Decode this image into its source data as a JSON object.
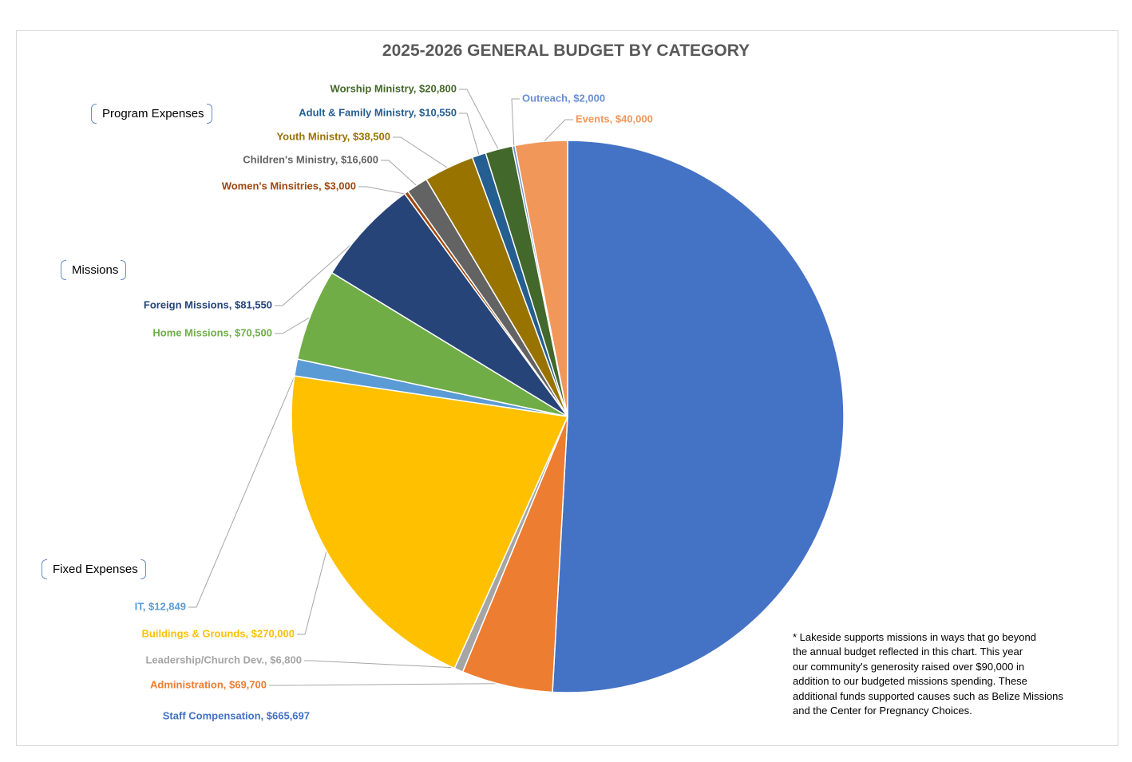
{
  "chart_data": {
    "type": "pie",
    "title": "2025-2026 GENERAL BUDGET BY CATEGORY",
    "slices": [
      {
        "label": "Staff Compensation, $665,697",
        "value": 665697,
        "color": "#4472C4"
      },
      {
        "label": "Administration, $69,700",
        "value": 69700,
        "color": "#ED7D31"
      },
      {
        "label": "Leadership/Church Dev., $6,800",
        "value": 6800,
        "color": "#A5A5A5"
      },
      {
        "label": "Buildings & Grounds, $270,000",
        "value": 270000,
        "color": "#FFC000"
      },
      {
        "label": "IT, $12,849",
        "value": 12849,
        "color": "#5B9BD5"
      },
      {
        "label": "Home Missions, $70,500",
        "value": 70500,
        "color": "#70AD47"
      },
      {
        "label": "Foreign Missions, $81,550",
        "value": 81550,
        "color": "#264478"
      },
      {
        "label": "Women's Minsitries, $3,000",
        "value": 3000,
        "color": "#9E480E"
      },
      {
        "label": "Children's Ministry, $16,600",
        "value": 16600,
        "color": "#636363"
      },
      {
        "label": "Youth Ministry, $38,500",
        "value": 38500,
        "color": "#997300"
      },
      {
        "label": "Adult & Family Ministry, $10,550",
        "value": 10550,
        "color": "#255E91"
      },
      {
        "label": "Worship Ministry, $20,800",
        "value": 20800,
        "color": "#43682B"
      },
      {
        "label": "Outreach, $2,000",
        "value": 2000,
        "color": "#698ED0"
      },
      {
        "label": "Events, $40,000",
        "value": 40000,
        "color": "#F1975A"
      }
    ],
    "start_angle_deg": 0,
    "direction": "clockwise"
  },
  "group_labels": {
    "program": "Program Expenses",
    "missions": "Missions",
    "fixed": "Fixed Expenses"
  },
  "footnote": "* Lakeside supports missions in ways that go beyond\nthe annual budget reflected in this chart. This year\nour community's generosity raised over $90,000 in\naddition to our budgeted missions spending. These\nadditional funds supported causes such as Belize Missions\n and the Center for Pregnancy Choices."
}
